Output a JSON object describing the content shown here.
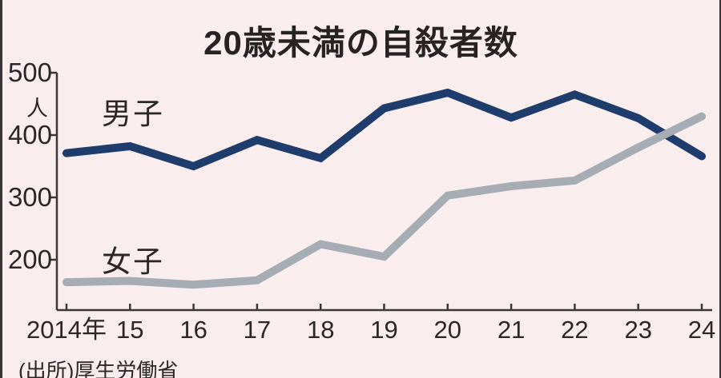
{
  "chart_data": {
    "type": "line",
    "title": "20歳未満の自殺者数",
    "unit": "人",
    "source": "(出所)厚生労働省",
    "x_tick_labels": [
      "2014年",
      "15",
      "16",
      "17",
      "18",
      "19",
      "20",
      "21",
      "22",
      "23",
      "24"
    ],
    "y_ticks": [
      500,
      400,
      300,
      200
    ],
    "y_tick_labels": [
      "500",
      "400",
      "300",
      "200"
    ],
    "ylim": [
      120,
      500
    ],
    "grid": false,
    "legend_position": "inline-labels-on-plot",
    "series": [
      {
        "name": "男子",
        "color": "#1e3d6c",
        "values": [
          371,
          382,
          350,
          392,
          363,
          443,
          468,
          428,
          465,
          427,
          366
        ]
      },
      {
        "name": "女子",
        "color": "#a6acb3",
        "values": [
          164,
          166,
          160,
          167,
          225,
          205,
          303,
          318,
          327,
          380,
          430
        ]
      }
    ]
  },
  "colors": {
    "background": "#f9eded",
    "axis": "#3c3637",
    "text": "#2b2627",
    "border": "#3b3537"
  }
}
